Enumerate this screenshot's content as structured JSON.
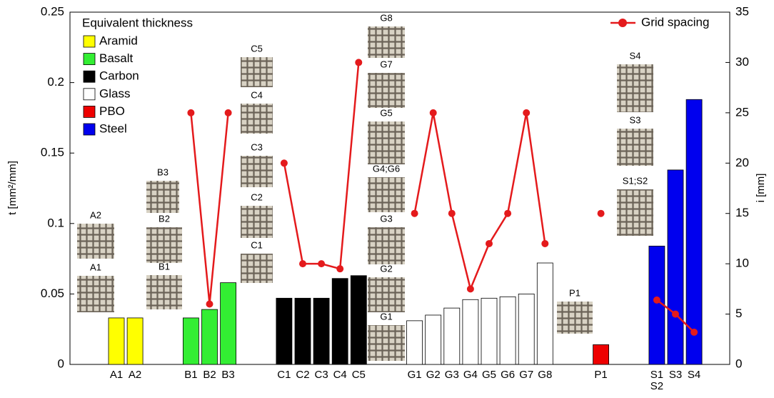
{
  "chart_data": {
    "type": "bar",
    "ylabel": "t [mm²/mm]",
    "y2label": "i [mm]",
    "ylim": [
      0,
      0.25
    ],
    "yticks": [
      0,
      0.05,
      0.1,
      0.15,
      0.2,
      0.25
    ],
    "y2lim": [
      0,
      35
    ],
    "y2ticks": [
      0,
      5,
      10,
      15,
      20,
      25,
      30,
      35
    ],
    "categories": [
      "A1",
      "A2",
      null,
      null,
      "B1",
      "B2",
      "B3",
      null,
      null,
      "C1",
      "C2",
      "C3",
      "C4",
      "C5",
      null,
      null,
      "G1",
      "G2",
      "G3",
      "G4",
      "G5",
      "G6",
      "G7",
      "G8",
      null,
      null,
      "P1",
      null,
      null,
      [
        "S1",
        "S2"
      ],
      "S3",
      "S4"
    ],
    "series": [
      {
        "name": "Equivalent thickness",
        "values": [
          0.033,
          0.033,
          null,
          null,
          0.033,
          0.039,
          0.058,
          null,
          null,
          0.047,
          0.047,
          0.047,
          0.061,
          0.063,
          null,
          null,
          0.031,
          0.035,
          0.04,
          0.046,
          0.047,
          0.048,
          0.05,
          0.072,
          null,
          null,
          0.014,
          null,
          null,
          0.084,
          0.138,
          0.188
        ],
        "colors": [
          "#ffff00",
          "#ffff00",
          null,
          null,
          "#33ee33",
          "#33ee33",
          "#33ee33",
          null,
          null,
          "#000000",
          "#000000",
          "#000000",
          "#000000",
          "#000000",
          null,
          null,
          "#ffffff",
          "#ffffff",
          "#ffffff",
          "#ffffff",
          "#ffffff",
          "#ffffff",
          "#ffffff",
          "#ffffff",
          null,
          null,
          "#ee0000",
          null,
          null,
          "#0000ee",
          "#0000ee",
          "#0000ee"
        ]
      },
      {
        "name": "Grid spacing",
        "color": "#e41a1c",
        "axis": "y2",
        "type": "line",
        "values": [
          null,
          null,
          null,
          null,
          25,
          6,
          25,
          null,
          null,
          20,
          10,
          10,
          9.5,
          30,
          null,
          null,
          15,
          25,
          15,
          7.5,
          12,
          15,
          25,
          12,
          null,
          null,
          15,
          null,
          null,
          6.4,
          5,
          3.2
        ]
      }
    ],
    "legend": {
      "title": "Equivalent thickness",
      "items": [
        {
          "name": "Aramid",
          "color": "#ffff00"
        },
        {
          "name": "Basalt",
          "color": "#33ee33"
        },
        {
          "name": "Carbon",
          "color": "#000000"
        },
        {
          "name": "Glass",
          "color": "#ffffff"
        },
        {
          "name": "PBO",
          "color": "#ee0000"
        },
        {
          "name": "Steel",
          "color": "#0000ee"
        }
      ]
    },
    "photos": [
      "A2",
      "A1",
      "B3",
      "B2",
      "B1",
      "C5",
      "C4",
      "C3",
      "C2",
      "C1",
      "G8",
      "G7",
      "G5",
      "G4;G6",
      "G3",
      "G2",
      "G1",
      "P1",
      "S4",
      "S3",
      "S1;S2"
    ]
  }
}
